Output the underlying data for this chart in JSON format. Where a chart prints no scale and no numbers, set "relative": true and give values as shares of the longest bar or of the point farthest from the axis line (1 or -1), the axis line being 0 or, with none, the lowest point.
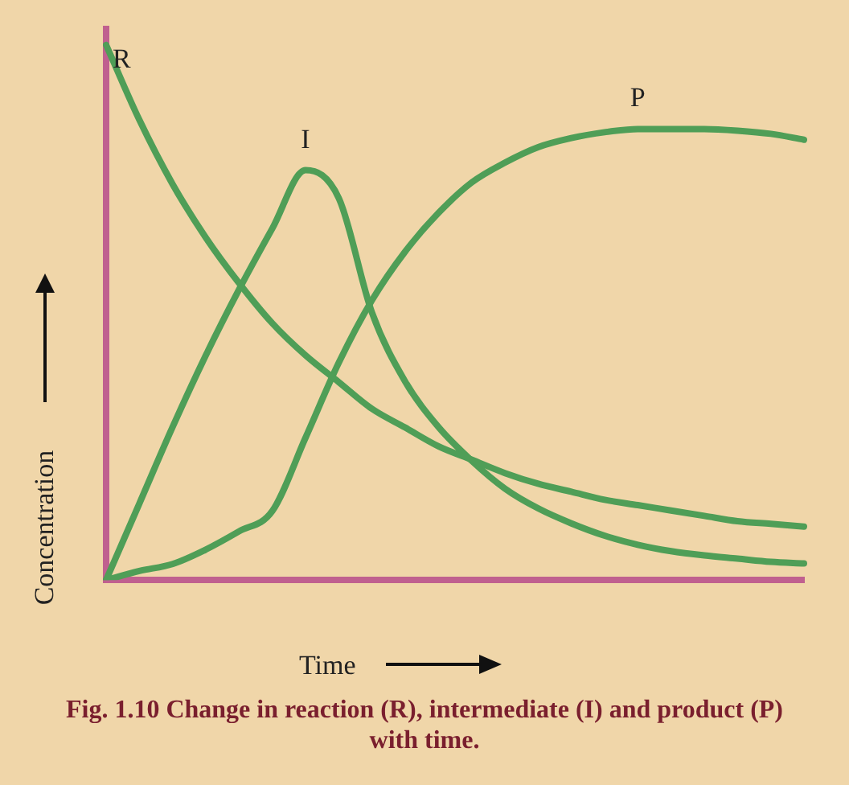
{
  "chart_data": {
    "type": "line",
    "relative": true,
    "xlabel": "Time",
    "ylabel": "Concentration",
    "annotations": [
      "Fig. 1.10 Change in reaction (R), intermediate (I) and product (P) with time."
    ],
    "categories": [
      null,
      null,
      null,
      null,
      null,
      null,
      null,
      null,
      null,
      null,
      null,
      null,
      null,
      null,
      null,
      null,
      null,
      null,
      null,
      null,
      null,
      null
    ],
    "legend": false,
    "grid": false,
    "marker": "none",
    "line_style": "solid",
    "series": [
      {
        "name": "R",
        "color": "#4f9e57",
        "values": [
          1.0,
          0.86,
          0.74,
          0.64,
          0.555,
          0.48,
          0.42,
          0.37,
          0.32,
          0.285,
          0.25,
          0.225,
          0.2,
          0.18,
          0.165,
          0.15,
          0.14,
          0.13,
          0.12,
          0.11,
          0.105,
          0.1
        ]
      },
      {
        "name": "I",
        "color": "#4f9e57",
        "values": [
          0,
          0.143,
          0.286,
          0.42,
          0.543,
          0.657,
          0.766,
          0.714,
          0.5,
          0.371,
          0.286,
          0.223,
          0.171,
          0.134,
          0.106,
          0.083,
          0.066,
          0.054,
          0.046,
          0.04,
          0.034,
          0.031
        ]
      },
      {
        "name": "P",
        "color": "#4f9e57",
        "values": [
          0,
          0.017,
          0.03,
          0.057,
          0.091,
          0.129,
          0.266,
          0.406,
          0.523,
          0.614,
          0.686,
          0.743,
          0.78,
          0.809,
          0.826,
          0.837,
          0.843,
          0.843,
          0.843,
          0.84,
          0.834,
          0.823
        ]
      }
    ]
  }
}
